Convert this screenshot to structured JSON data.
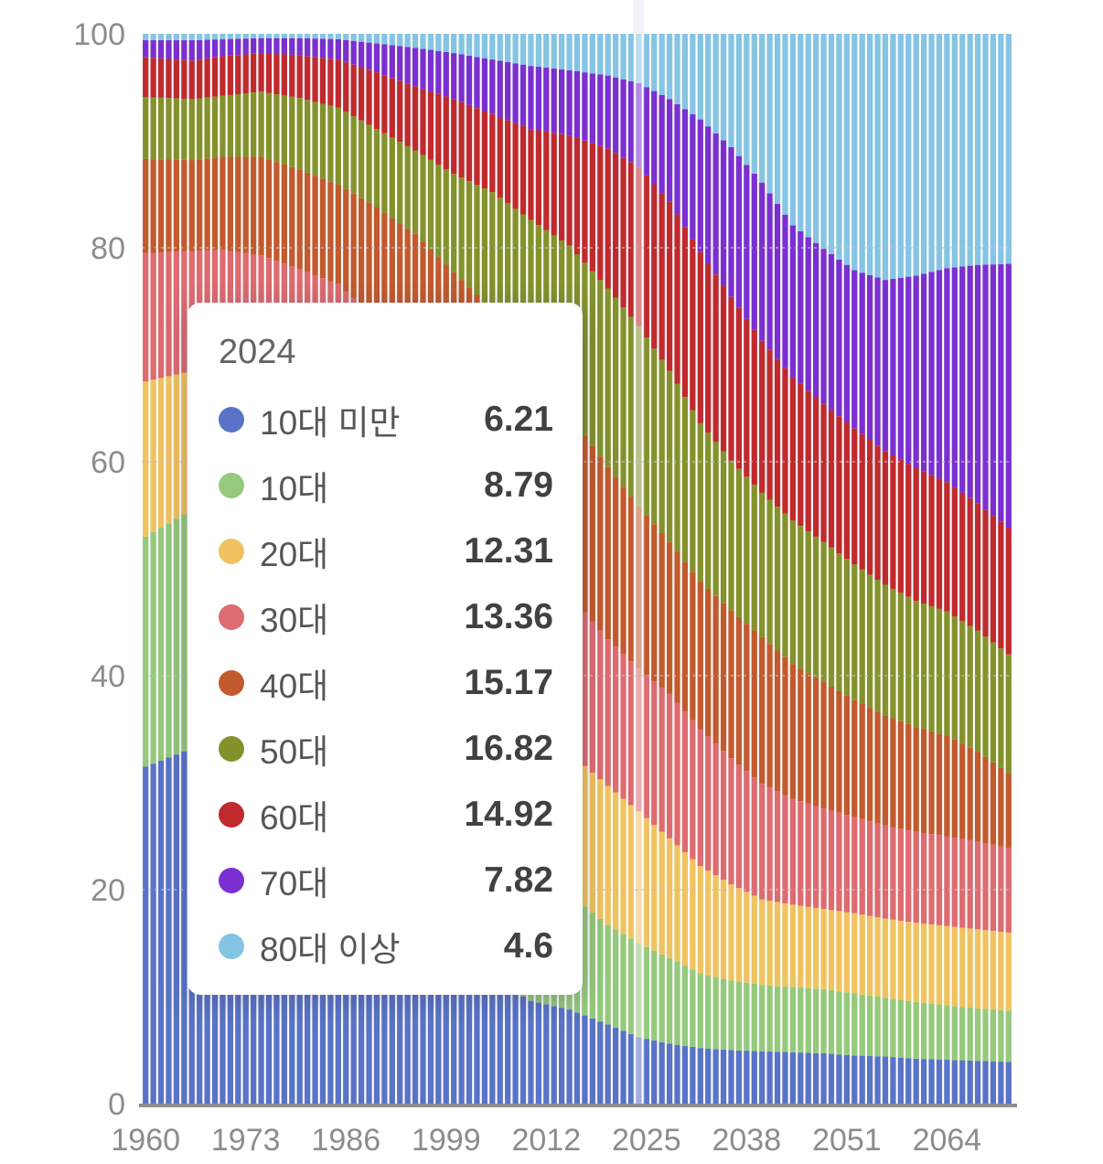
{
  "chart_data": {
    "type": "bar",
    "stack": "percent",
    "title": "",
    "xlabel": "",
    "ylabel": "",
    "x_start": 1960,
    "x_end": 2072,
    "x_tick_years": [
      1960,
      1973,
      1986,
      1999,
      2012,
      2025,
      2038,
      2051,
      2064
    ],
    "x_tick_labels": [
      "1960",
      "1973",
      "1986",
      "1999",
      "2012",
      "2025",
      "2038",
      "2051",
      "2064"
    ],
    "y_tick_values": [
      0,
      20,
      40,
      60,
      80,
      100
    ],
    "y_tick_labels": [
      "0",
      "20",
      "40",
      "60",
      "80",
      "100"
    ],
    "ylim": [
      0,
      100
    ],
    "grid_values": [
      20,
      40,
      60,
      80
    ],
    "grid_style": "dotted-faint",
    "legend_position": "tooltip-only",
    "highlight_year": 2024,
    "series_names": [
      "10대 미만",
      "10대",
      "20대",
      "30대",
      "40대",
      "50대",
      "60대",
      "70대",
      "80대 이상"
    ],
    "colors": [
      "#5873c8",
      "#95c97c",
      "#f0c360",
      "#dd6b70",
      "#c25a2e",
      "#84922c",
      "#c02a2e",
      "#7a30d1",
      "#85c4e2"
    ],
    "interpolation": "linear-between-anchors-normalized-to-100",
    "anchor_years": [
      1960,
      1966,
      1970,
      1975,
      1980,
      1985,
      1990,
      1995,
      2000,
      2005,
      2010,
      2015,
      2020,
      2024,
      2028,
      2032,
      2036,
      2040,
      2044,
      2048,
      2052,
      2056,
      2060,
      2064,
      2068,
      2072
    ],
    "anchor_values": [
      [
        31.5,
        21.5,
        14.5,
        12.0,
        8.8,
        5.8,
        3.7,
        1.6,
        0.6
      ],
      [
        33.2,
        22.3,
        13.0,
        11.2,
        8.5,
        5.7,
        3.6,
        1.9,
        0.6
      ],
      [
        31.2,
        23.5,
        14.3,
        10.8,
        8.7,
        5.7,
        3.7,
        1.6,
        0.5
      ],
      [
        27.8,
        24.6,
        16.4,
        10.5,
        9.2,
        6.1,
        3.6,
        1.4,
        0.4
      ],
      [
        24.0,
        24.2,
        18.4,
        11.4,
        9.3,
        6.7,
        4.0,
        1.6,
        0.4
      ],
      [
        20.8,
        22.4,
        19.6,
        13.8,
        9.3,
        7.2,
        4.5,
        1.9,
        0.5
      ],
      [
        17.6,
        19.7,
        20.2,
        15.8,
        10.5,
        7.3,
        5.3,
        2.7,
        0.9
      ],
      [
        15.3,
        16.8,
        19.2,
        17.2,
        12.8,
        7.8,
        6.0,
        3.6,
        1.3
      ],
      [
        13.8,
        14.7,
        16.9,
        17.5,
        14.8,
        9.2,
        7.0,
        4.3,
        1.8
      ],
      [
        11.6,
        13.9,
        15.0,
        16.9,
        16.8,
        11.0,
        7.3,
        5.1,
        2.4
      ],
      [
        9.6,
        13.2,
        13.6,
        15.8,
        17.0,
        13.4,
        8.5,
        5.9,
        3.0
      ],
      [
        8.8,
        10.8,
        13.2,
        14.8,
        16.8,
        15.8,
        10.3,
        6.1,
        3.4
      ],
      [
        7.4,
        9.3,
        13.0,
        13.7,
        16.1,
        16.7,
        13.1,
        6.8,
        3.9
      ],
      [
        6.21,
        8.79,
        12.31,
        13.36,
        15.17,
        16.82,
        14.92,
        7.82,
        4.6
      ],
      [
        5.6,
        8.0,
        11.2,
        13.5,
        14.2,
        16.0,
        15.8,
        9.6,
        6.1
      ],
      [
        5.2,
        7.0,
        10.0,
        12.8,
        13.8,
        14.8,
        16.0,
        12.4,
        8.0
      ],
      [
        5.0,
        6.5,
        9.0,
        11.8,
        13.8,
        14.0,
        15.3,
        14.0,
        10.6
      ],
      [
        4.9,
        6.2,
        8.0,
        10.8,
        13.7,
        13.5,
        14.2,
        14.8,
        13.9
      ],
      [
        4.8,
        6.1,
        7.7,
        9.9,
        12.6,
        13.4,
        13.4,
        14.2,
        17.9
      ],
      [
        4.7,
        6.0,
        7.5,
        9.4,
        11.8,
        13.1,
        12.9,
        14.5,
        20.1
      ],
      [
        4.5,
        5.8,
        7.5,
        9.0,
        10.9,
        12.7,
        12.7,
        14.8,
        22.1
      ],
      [
        4.4,
        5.5,
        7.4,
        8.7,
        10.3,
        12.2,
        12.5,
        16.0,
        23.0
      ],
      [
        4.2,
        5.3,
        7.4,
        8.5,
        9.8,
        11.8,
        12.4,
        18.0,
        22.6
      ],
      [
        4.1,
        5.1,
        7.4,
        8.4,
        9.4,
        11.6,
        12.1,
        20.0,
        21.9
      ],
      [
        4.0,
        4.9,
        7.4,
        8.2,
        8.4,
        11.3,
        11.9,
        22.3,
        21.6
      ],
      [
        3.9,
        4.8,
        7.3,
        7.9,
        7.0,
        11.1,
        11.8,
        24.7,
        21.5
      ]
    ]
  },
  "tooltip": {
    "title": "2024",
    "rows": [
      {
        "label": "10대 미만",
        "value": "6.21",
        "color": "#5873c8"
      },
      {
        "label": "10대",
        "value": "8.79",
        "color": "#95c97c"
      },
      {
        "label": "20대",
        "value": "12.31",
        "color": "#f0c360"
      },
      {
        "label": "30대",
        "value": "13.36",
        "color": "#dd6b70"
      },
      {
        "label": "40대",
        "value": "15.17",
        "color": "#c25a2e"
      },
      {
        "label": "50대",
        "value": "16.82",
        "color": "#84922c"
      },
      {
        "label": "60대",
        "value": "14.92",
        "color": "#c02a2e"
      },
      {
        "label": "70대",
        "value": "7.82",
        "color": "#7a30d1"
      },
      {
        "label": "80대 이상",
        "value": "4.6",
        "color": "#85c4e2"
      }
    ]
  }
}
